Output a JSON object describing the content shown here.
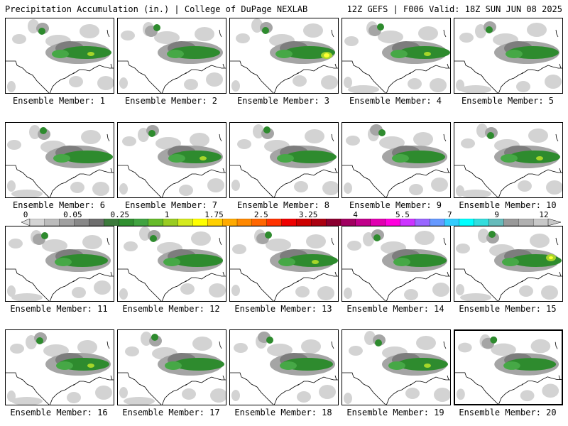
{
  "header": {
    "left": "Precipitation Accumulation (in.) | College of DuPage NEXLAB",
    "right": "12Z GEFS | F006 Valid: 18Z SUN JUN 08 2025"
  },
  "colorbar": {
    "labels": [
      "0",
      "0.05",
      "0.25",
      "1",
      "1.75",
      "2.5",
      "3.25",
      "4",
      "5.5",
      "7",
      "9",
      "12"
    ],
    "colors": [
      "#d4d4d4",
      "#bcbcbc",
      "#a0a0a0",
      "#888888",
      "#6e6e6e",
      "#3c7a3c",
      "#2f8f2f",
      "#40a340",
      "#66bb2a",
      "#99cc22",
      "#d4ea1e",
      "#ffff00",
      "#ffd000",
      "#ffaa00",
      "#ff8800",
      "#ff6600",
      "#ff3300",
      "#ee0000",
      "#cc0000",
      "#aa0010",
      "#8a0030",
      "#a00060",
      "#c0008a",
      "#e000b0",
      "#ff00dd",
      "#cc33ff",
      "#9966ff",
      "#6699ff",
      "#33ccff",
      "#00ffff",
      "#33dddd",
      "#66bbbb",
      "#999999",
      "#b0b0b0",
      "#c8c8c8"
    ]
  },
  "members": [
    {
      "caption": "Ensemble Member: 1"
    },
    {
      "caption": "Ensemble Member: 2"
    },
    {
      "caption": "Ensemble Member: 3"
    },
    {
      "caption": "Ensemble Member: 4"
    },
    {
      "caption": "Ensemble Member: 5"
    },
    {
      "caption": "Ensemble Member: 6"
    },
    {
      "caption": "Ensemble Member: 7"
    },
    {
      "caption": "Ensemble Member: 8"
    },
    {
      "caption": "Ensemble Member: 9"
    },
    {
      "caption": "Ensemble Member: 10"
    },
    {
      "caption": "Ensemble Member: 11"
    },
    {
      "caption": "Ensemble Member: 12"
    },
    {
      "caption": "Ensemble Member: 13"
    },
    {
      "caption": "Ensemble Member: 14"
    },
    {
      "caption": "Ensemble Member: 15"
    },
    {
      "caption": "Ensemble Member: 16"
    },
    {
      "caption": "Ensemble Member: 17"
    },
    {
      "caption": "Ensemble Member: 18"
    },
    {
      "caption": "Ensemble Member: 19"
    },
    {
      "caption": "Ensemble Member: 20"
    }
  ],
  "colors": {
    "light_gray": "#d3d3d3",
    "mid_gray": "#a5a5a5",
    "dark_gray": "#7d7d7d",
    "green": "#2e8b2e",
    "green_light": "#46a846",
    "yellow_green": "#a6d62a",
    "yellow": "#ffff33"
  }
}
